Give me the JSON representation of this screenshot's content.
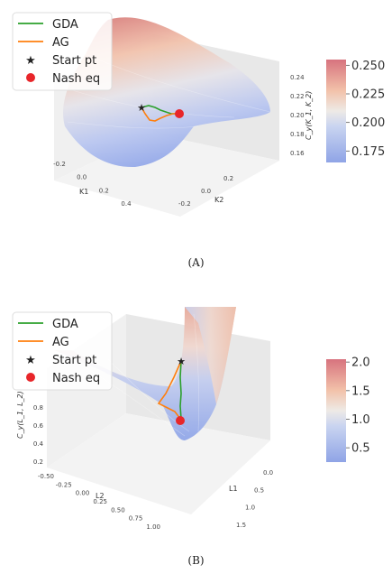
{
  "chart_data": [
    {
      "type": "surface3d",
      "zlabel": "C_y(K_1, K_2)",
      "x_axis": {
        "label": "K1",
        "ticks": [
          "-0.2",
          "0.0",
          "0.2",
          "0.4"
        ]
      },
      "y_axis": {
        "label": "K2",
        "ticks": [
          "-0.2",
          "0.0",
          "0.2"
        ]
      },
      "z_axis": {
        "ticks": [
          "0.16",
          "0.18",
          "0.20",
          "0.22",
          "0.24"
        ]
      },
      "colorbar": {
        "colormap": "coolwarm",
        "range": [
          0.165,
          0.255
        ],
        "ticks": [
          "0.175",
          "0.200",
          "0.225",
          "0.250"
        ],
        "tick_values": [
          0.175,
          0.2,
          0.225,
          0.25
        ]
      },
      "legend": {
        "placement": "top-left",
        "entries": [
          {
            "label": "GDA",
            "color": "#2ca02c",
            "marker": "line"
          },
          {
            "label": "AG",
            "color": "#ff7f0e",
            "marker": "line"
          },
          {
            "label": "Start pt",
            "color": "#222222",
            "marker": "star"
          },
          {
            "label": "Nash eq",
            "color": "#e8262a",
            "marker": "circle"
          }
        ]
      },
      "caption": "(A)"
    },
    {
      "type": "surface3d",
      "zlabel": "C_y(L_1, L_2)",
      "x_axis": {
        "label": "L1",
        "ticks": [
          "1.5",
          "1.0",
          "0.5",
          "0.0"
        ]
      },
      "y_axis": {
        "label": "L2",
        "ticks": [
          "-0.50",
          "-0.25",
          "0.00",
          "0.25",
          "0.50",
          "0.75",
          "1.00"
        ]
      },
      "z_axis": {
        "ticks": [
          "0.2",
          "0.4",
          "0.6",
          "0.8"
        ]
      },
      "colorbar": {
        "colormap": "coolwarm",
        "range": [
          0.25,
          2.05
        ],
        "ticks": [
          "0.5",
          "1.0",
          "1.5",
          "2.0"
        ],
        "tick_values": [
          0.5,
          1.0,
          1.5,
          2.0
        ]
      },
      "legend": {
        "placement": "top-left",
        "entries": [
          {
            "label": "GDA",
            "color": "#2ca02c",
            "marker": "line"
          },
          {
            "label": "AG",
            "color": "#ff7f0e",
            "marker": "line"
          },
          {
            "label": "Start pt",
            "color": "#222222",
            "marker": "star"
          },
          {
            "label": "Nash eq",
            "color": "#e8262a",
            "marker": "circle"
          }
        ]
      },
      "caption": "(B)"
    }
  ]
}
